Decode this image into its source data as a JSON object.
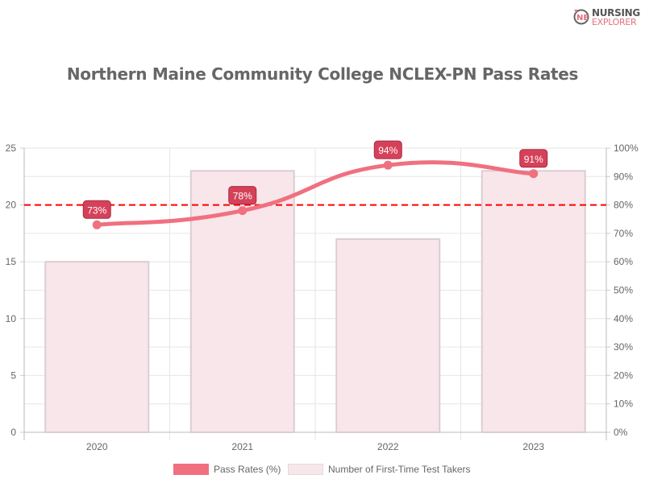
{
  "logo": {
    "line1": "NURSING",
    "line2": "EXPLORER"
  },
  "chart_data": {
    "type": "bar",
    "title": "Northern Maine Community College NCLEX-PN Pass Rates",
    "categories": [
      "2020",
      "2021",
      "2022",
      "2023"
    ],
    "series": [
      {
        "name": "Pass Rates (%)",
        "type": "line",
        "axis": "right",
        "values": [
          73,
          78,
          94,
          91
        ],
        "labels": [
          "73%",
          "78%",
          "94%",
          "91%"
        ],
        "color": "#f07080"
      },
      {
        "name": "Number of First-Time Test Takers",
        "type": "bar",
        "axis": "left",
        "values": [
          15,
          23,
          17,
          23
        ],
        "color": "#f8e6ea"
      }
    ],
    "left_axis": {
      "ylim": [
        0,
        25
      ],
      "ticks": [
        "0",
        "5",
        "10",
        "15",
        "20",
        "25"
      ]
    },
    "right_axis": {
      "ylim": [
        0,
        100
      ],
      "ticks": [
        "0%",
        "10%",
        "20%",
        "30%",
        "40%",
        "50%",
        "60%",
        "70%",
        "80%",
        "90%",
        "100%"
      ]
    },
    "reference_line": {
      "value": 80,
      "axis": "right",
      "color": "#ff0000",
      "style": "dashed"
    },
    "grid": true,
    "legend": "bottom"
  }
}
